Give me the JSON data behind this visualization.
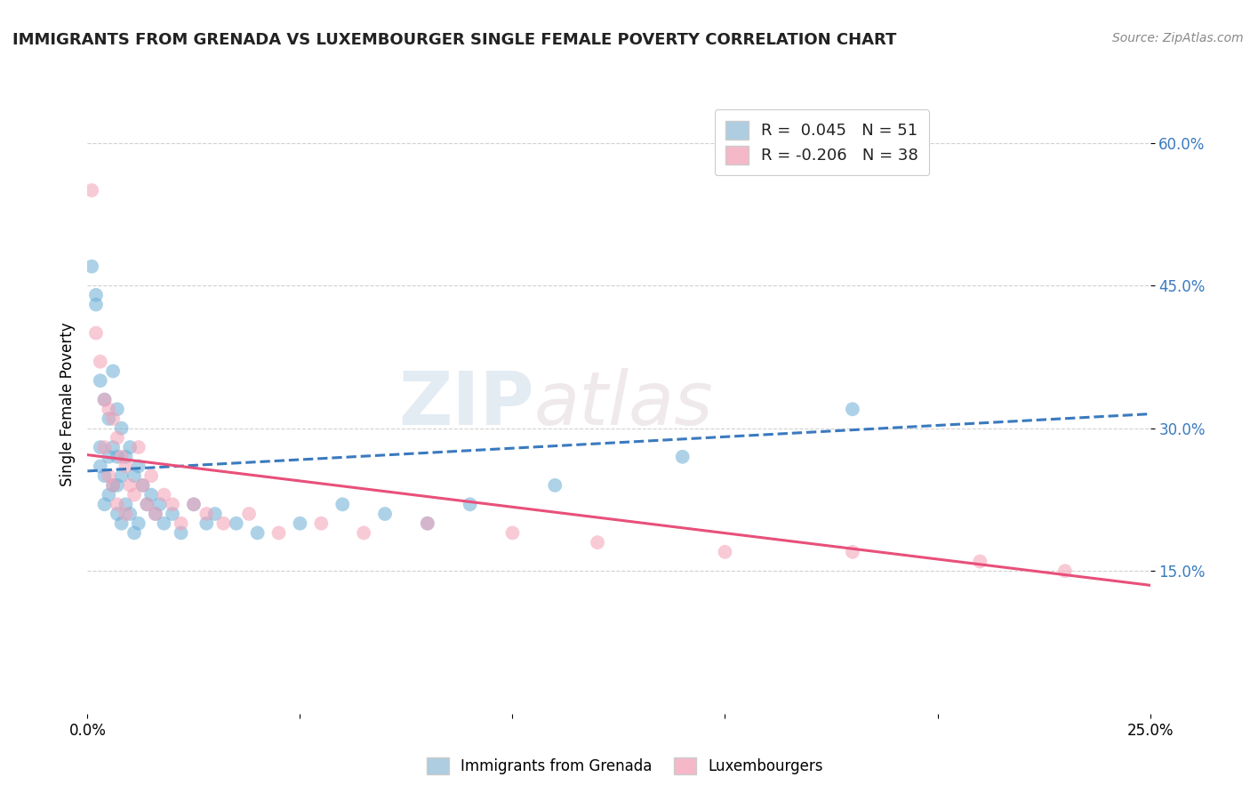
{
  "title": "IMMIGRANTS FROM GRENADA VS LUXEMBOURGER SINGLE FEMALE POVERTY CORRELATION CHART",
  "source": "Source: ZipAtlas.com",
  "ylabel": "Single Female Poverty",
  "xlim": [
    0.0,
    0.25
  ],
  "ylim": [
    0.0,
    0.65
  ],
  "yticks": [
    0.15,
    0.3,
    0.45,
    0.6
  ],
  "ytick_labels": [
    "15.0%",
    "30.0%",
    "45.0%",
    "60.0%"
  ],
  "xticks": [
    0.0,
    0.05,
    0.1,
    0.15,
    0.2,
    0.25
  ],
  "xtick_labels": [
    "0.0%",
    "",
    "",
    "",
    "",
    "25.0%"
  ],
  "r1": 0.045,
  "n1": 51,
  "r2": -0.206,
  "n2": 38,
  "color_blue": "#6baed6",
  "color_pink": "#f4a0b5",
  "color_blue_line": "#3a7abf",
  "color_pink_line": "#e8507a",
  "color_blue_legend": "#aecde0",
  "color_pink_legend": "#f5b8c8",
  "watermark_zip": "ZIP",
  "watermark_atlas": "atlas",
  "background_color": "#ffffff",
  "grid_color": "#cccccc",
  "blue_scatter_x": [
    0.001,
    0.002,
    0.002,
    0.003,
    0.003,
    0.003,
    0.004,
    0.004,
    0.004,
    0.005,
    0.005,
    0.005,
    0.006,
    0.006,
    0.006,
    0.007,
    0.007,
    0.007,
    0.007,
    0.008,
    0.008,
    0.008,
    0.009,
    0.009,
    0.01,
    0.01,
    0.011,
    0.011,
    0.012,
    0.012,
    0.013,
    0.014,
    0.015,
    0.016,
    0.017,
    0.018,
    0.02,
    0.022,
    0.025,
    0.028,
    0.03,
    0.035,
    0.04,
    0.05,
    0.06,
    0.07,
    0.08,
    0.09,
    0.11,
    0.14,
    0.18
  ],
  "blue_scatter_y": [
    0.47,
    0.43,
    0.44,
    0.35,
    0.28,
    0.26,
    0.33,
    0.25,
    0.22,
    0.31,
    0.27,
    0.23,
    0.36,
    0.28,
    0.24,
    0.32,
    0.27,
    0.24,
    0.21,
    0.3,
    0.25,
    0.2,
    0.27,
    0.22,
    0.28,
    0.21,
    0.25,
    0.19,
    0.26,
    0.2,
    0.24,
    0.22,
    0.23,
    0.21,
    0.22,
    0.2,
    0.21,
    0.19,
    0.22,
    0.2,
    0.21,
    0.2,
    0.19,
    0.2,
    0.22,
    0.21,
    0.2,
    0.22,
    0.24,
    0.27,
    0.32
  ],
  "pink_scatter_x": [
    0.001,
    0.002,
    0.003,
    0.004,
    0.004,
    0.005,
    0.005,
    0.006,
    0.006,
    0.007,
    0.007,
    0.008,
    0.009,
    0.009,
    0.01,
    0.011,
    0.012,
    0.013,
    0.014,
    0.015,
    0.016,
    0.018,
    0.02,
    0.022,
    0.025,
    0.028,
    0.032,
    0.038,
    0.045,
    0.055,
    0.065,
    0.08,
    0.1,
    0.12,
    0.15,
    0.18,
    0.21,
    0.23
  ],
  "pink_scatter_y": [
    0.55,
    0.4,
    0.37,
    0.33,
    0.28,
    0.32,
    0.25,
    0.31,
    0.24,
    0.29,
    0.22,
    0.27,
    0.26,
    0.21,
    0.24,
    0.23,
    0.28,
    0.24,
    0.22,
    0.25,
    0.21,
    0.23,
    0.22,
    0.2,
    0.22,
    0.21,
    0.2,
    0.21,
    0.19,
    0.2,
    0.19,
    0.2,
    0.19,
    0.18,
    0.17,
    0.17,
    0.16,
    0.15
  ]
}
